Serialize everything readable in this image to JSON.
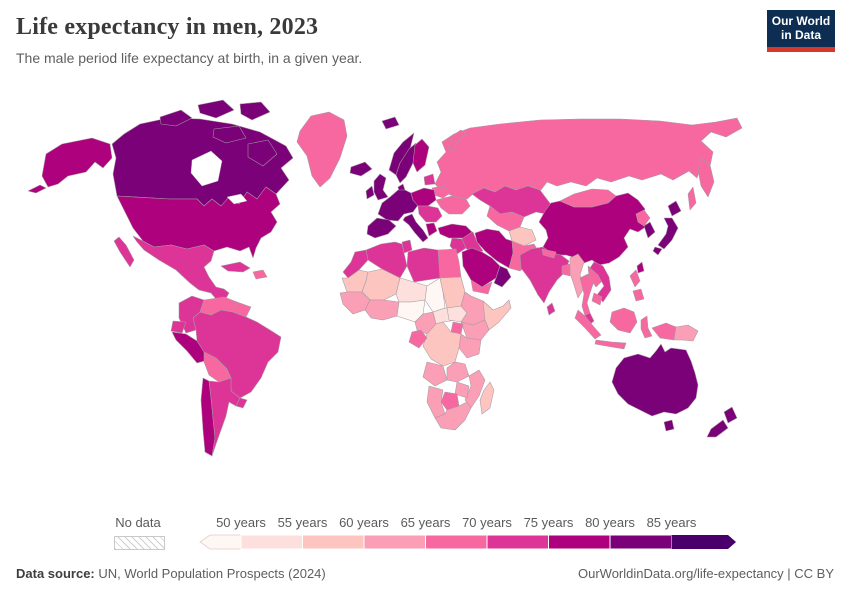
{
  "header": {
    "title": "Life expectancy in men, 2023",
    "subtitle": "The male period life expectancy at birth, in a given year.",
    "logo": {
      "line1": "Our World",
      "line2": "in Data",
      "bg": "#0d2e52",
      "accent": "#d7382d"
    }
  },
  "legend": {
    "no_data_label": "No data",
    "tick_labels": [
      "50 years",
      "55 years",
      "60 years",
      "65 years",
      "70 years",
      "75 years",
      "80 years",
      "85 years"
    ],
    "palette": [
      "#fff7f3",
      "#fde0dd",
      "#fcc5c0",
      "#fa9fb5",
      "#f768a1",
      "#dd3497",
      "#ae017e",
      "#7a0177",
      "#49006a"
    ],
    "bin_ranges": [
      "<50",
      "50-55",
      "55-60",
      "60-65",
      "65-70",
      "70-75",
      "75-80",
      "80-85",
      "85+"
    ]
  },
  "footer": {
    "source_bold": "Data source:",
    "source_rest": " UN, World Population Prospects (2024)",
    "credit": "OurWorldinData.org/life-expectancy | CC BY"
  },
  "map": {
    "metric": "Male period life expectancy at birth (years)",
    "year": "2023",
    "regions": {
      "alaska": 6,
      "aleutians": 6,
      "canada": 7,
      "arctic-island-1": 7,
      "arctic-island-2": 7,
      "arctic-island-3": 7,
      "arctic-island-4": 7,
      "baffin-island": 7,
      "greenland": 4,
      "iceland": 7,
      "usa": 6,
      "mexico": 5,
      "baja-california": 5,
      "central-america": 4,
      "cuba": 5,
      "hispaniola": 4,
      "colombia": 5,
      "venezuela": 4,
      "guianas": 4,
      "ecuador": 5,
      "peru": 6,
      "brazil": 5,
      "bolivia": 4,
      "chile": 6,
      "argentina": 5,
      "uruguay": 5,
      "uk": 7,
      "ireland": 7,
      "norway": 7,
      "sweden": 7,
      "finland": 6,
      "denmark": 7,
      "baltics": 5,
      "western-europe": 7,
      "iberia": 7,
      "italy": 7,
      "central-europe": 6,
      "balkans": 5,
      "greece": 6,
      "ukraine": 4,
      "belarus": 4,
      "russia": 4,
      "kamchatka": 4,
      "sakhalin": 4,
      "svalbard": 7,
      "novaya-zemlya": 4,
      "kazakhstan": 5,
      "central-asia": 4,
      "afghanistan": 2,
      "pakistan": 4,
      "iran": 6,
      "iraq": 5,
      "turkey": 6,
      "levant": 5,
      "saudi-arabia": 6,
      "yemen": 4,
      "oman-uae": 7,
      "egypt": 4,
      "libya": 5,
      "tunisia": 5,
      "algeria": 5,
      "morocco": 5,
      "mauritania": 2,
      "mali": 2,
      "niger": 1,
      "chad": 0,
      "sudan": 2,
      "senegal-guinea": 3,
      "gulf-of-guinea": 3,
      "nigeria": 0,
      "cameroon": 3,
      "central-african-republic": 1,
      "south-sudan": 1,
      "ethiopia": 3,
      "somalia": 2,
      "kenya": 3,
      "uganda": 4,
      "dr-congo": 2,
      "gabon-congo": 4,
      "tanzania": 3,
      "angola": 3,
      "zambia": 3,
      "mozambique": 3,
      "zimbabwe": 3,
      "botswana": 4,
      "namibia": 3,
      "south-africa": 3,
      "madagascar": 2,
      "india": 5,
      "sri-lanka": 5,
      "nepal": 4,
      "bangladesh": 4,
      "myanmar": 3,
      "thailand": 4,
      "laos": 4,
      "vietnam": 5,
      "cambodia": 4,
      "malay-peninsula": 5,
      "sumatra": 4,
      "java": 4,
      "borneo": 4,
      "sulawesi": 4,
      "philippines-north": 4,
      "philippines-south": 4,
      "new-guinea-west": 4,
      "papua-new-guinea": 3,
      "china": 6,
      "mongolia": 4,
      "north-korea": 4,
      "south-korea": 7,
      "japan-hokkaido": 7,
      "japan-honshu": 7,
      "japan-kyushu": 7,
      "taiwan": 6,
      "australia": 7,
      "tasmania": 7,
      "new-zealand-north": 7,
      "new-zealand-south": 7
    }
  }
}
